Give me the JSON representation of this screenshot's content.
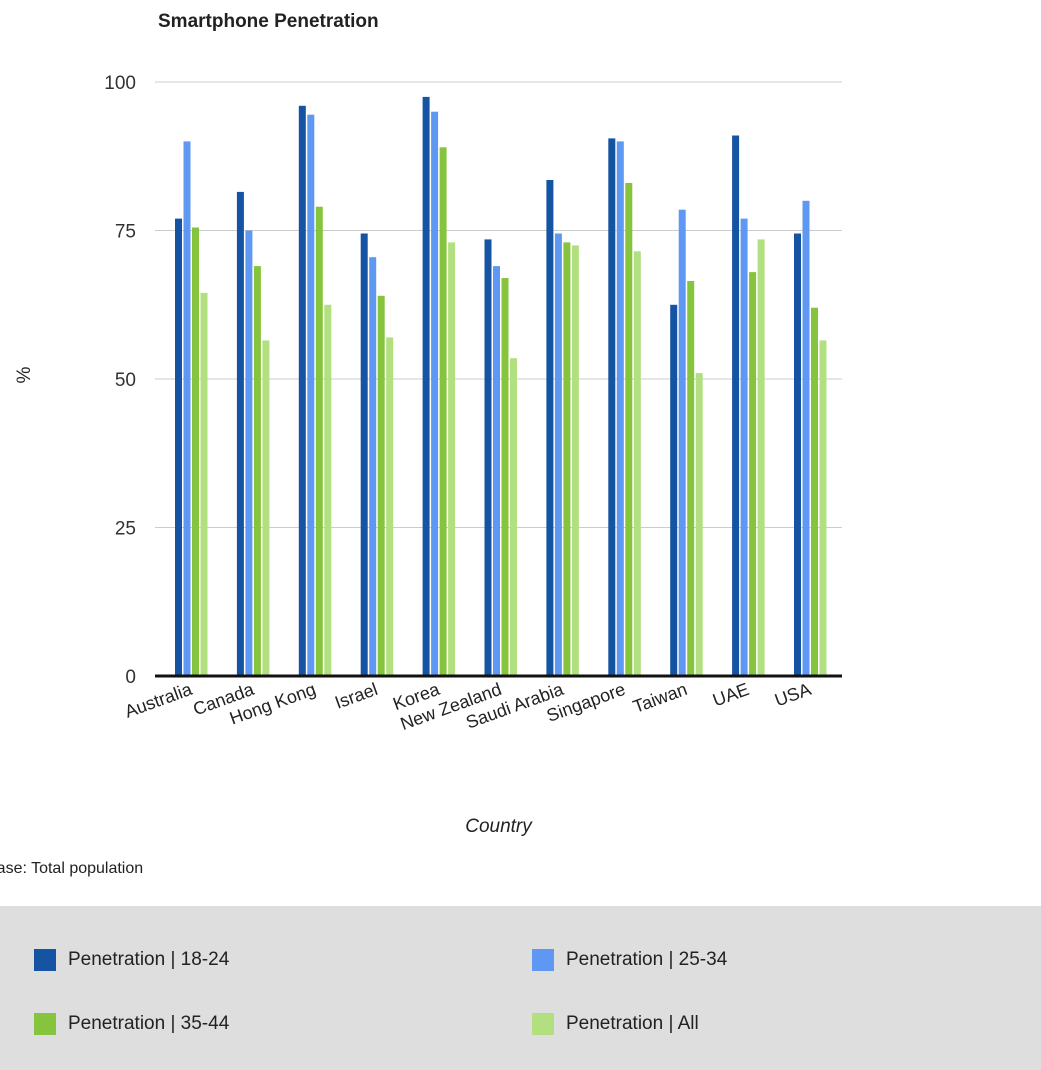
{
  "chart_data": {
    "type": "bar",
    "title": "Smartphone Penetration",
    "xlabel": "Country",
    "ylabel": "%",
    "ylim": [
      0,
      100
    ],
    "yticks": [
      "0",
      "25",
      "50",
      "75",
      "100"
    ],
    "grid": true,
    "legend_position": "bottom",
    "categories": [
      "Australia",
      "Canada",
      "Hong Kong",
      "Israel",
      "Korea",
      "New Zealand",
      "Saudi Arabia",
      "Singapore",
      "Taiwan",
      "UAE",
      "USA"
    ],
    "series": [
      {
        "name": "Penetration | 18-24",
        "color": "#1553a3",
        "values": [
          77,
          81.5,
          96,
          74.5,
          97.5,
          73.5,
          83.5,
          90.5,
          62.5,
          91,
          74.5
        ]
      },
      {
        "name": "Penetration | 25-34",
        "color": "#5e98f2",
        "values": [
          90,
          75,
          94.5,
          70.5,
          95,
          69,
          74.5,
          90,
          78.5,
          77,
          80
        ]
      },
      {
        "name": "Penetration | 35-44",
        "color": "#86c43d",
        "values": [
          75.5,
          69,
          79,
          64,
          89,
          67,
          73,
          83,
          66.5,
          68,
          62
        ]
      },
      {
        "name": "Penetration | All",
        "color": "#b2e080",
        "values": [
          64.5,
          56.5,
          62.5,
          57,
          73,
          53.5,
          72.5,
          71.5,
          51,
          73.5,
          56.5
        ]
      }
    ]
  },
  "note": "Base: Total population"
}
